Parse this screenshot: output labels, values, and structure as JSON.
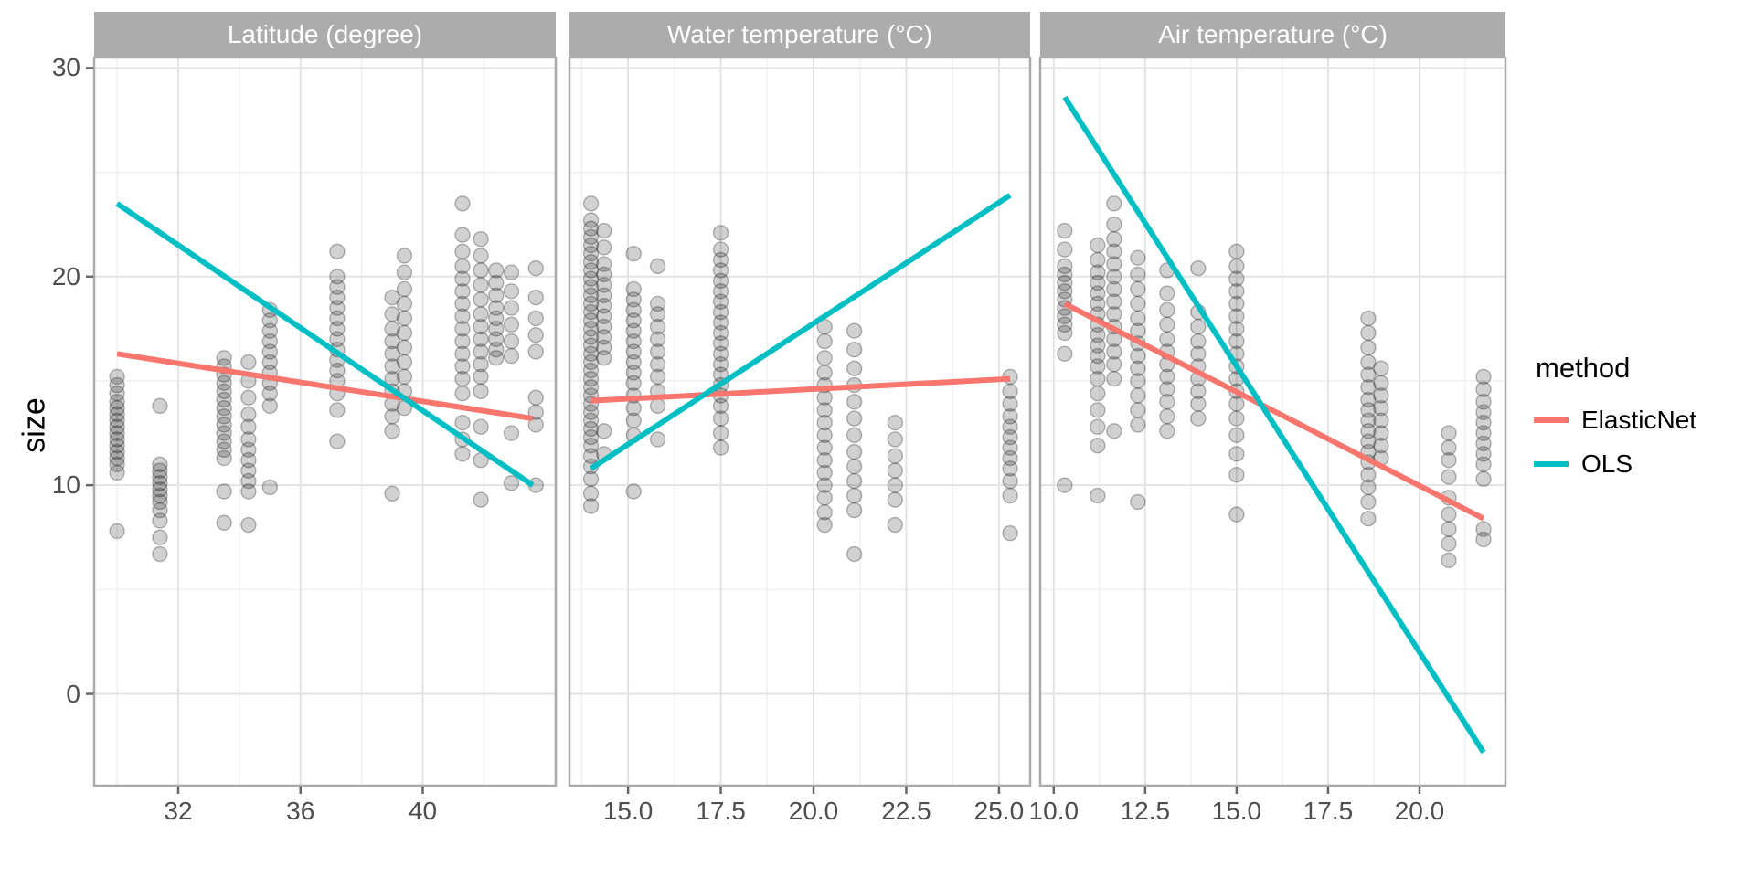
{
  "chart_data": {
    "type": "scatter",
    "ylabel": "size",
    "ylim": [
      -4.4,
      30.5
    ],
    "y_ticks": [
      {
        "value": 0,
        "label": "0"
      },
      {
        "value": 10,
        "label": "10"
      },
      {
        "value": 20,
        "label": "20"
      },
      {
        "value": 30,
        "label": "30"
      }
    ],
    "y_minor": [
      5,
      15,
      25
    ],
    "legend": {
      "title": "method",
      "items": [
        {
          "label": "ElasticNet",
          "color": "#F8766D"
        },
        {
          "label": "OLS",
          "color": "#00BFC4"
        }
      ]
    },
    "theme": {
      "strip_bg": "#ACACAC",
      "strip_text": "#FFFFFF",
      "panel_border": "#A9A9A9",
      "grid_major": "#E3E3E3",
      "grid_minor": "#F1F1F1",
      "tick_mark": "#666666",
      "tick_text": "#4D4D4D",
      "point_color": "#000000",
      "line_width": 6
    },
    "panels": [
      {
        "title": "Latitude (degree)",
        "xlim": [
          29.25,
          44.35
        ],
        "x_ticks": [
          {
            "value": 32,
            "label": "32"
          },
          {
            "value": 36,
            "label": "36"
          },
          {
            "value": 40,
            "label": "40"
          }
        ],
        "x_minor": [
          30,
          34,
          38,
          42
        ],
        "lines": {
          "ElasticNet": {
            "x": [
              30.0,
              43.6
            ],
            "y": [
              16.3,
              13.2
            ]
          },
          "OLS": {
            "x": [
              30.0,
              43.6
            ],
            "y": [
              23.5,
              10.0
            ]
          }
        },
        "clusters": [
          {
            "x": 30.0,
            "sizes": [
              15.2,
              14.8,
              14.4,
              14.0,
              13.7,
              13.4,
              13.1,
              12.8,
              12.5,
              12.2,
              11.9,
              11.6,
              11.3,
              11.0,
              10.6,
              7.8
            ]
          },
          {
            "x": 31.4,
            "sizes": [
              13.8,
              11.0,
              10.7,
              10.4,
              10.1,
              9.8,
              9.5,
              9.2,
              8.8,
              8.3,
              7.5,
              6.7
            ]
          },
          {
            "x": 33.5,
            "sizes": [
              16.1,
              15.7,
              15.3,
              14.9,
              14.5,
              14.1,
              13.7,
              13.3,
              12.9,
              12.5,
              12.1,
              11.7,
              11.3,
              9.7,
              8.2
            ]
          },
          {
            "x": 34.3,
            "sizes": [
              15.9,
              15.0,
              14.2,
              13.4,
              12.8,
              12.2,
              11.7,
              11.2,
              10.7,
              10.2,
              9.7,
              8.1
            ]
          },
          {
            "x": 35.0,
            "sizes": [
              18.4,
              17.9,
              17.4,
              16.9,
              16.4,
              15.9,
              15.4,
              14.9,
              14.4,
              13.8,
              9.9
            ]
          },
          {
            "x": 37.2,
            "sizes": [
              21.2,
              20.0,
              19.5,
              19.0,
              18.5,
              18.0,
              17.5,
              17.0,
              16.5,
              16.0,
              15.5,
              15.0,
              14.4,
              13.6,
              12.1
            ]
          },
          {
            "x": 39.0,
            "sizes": [
              19.0,
              18.2,
              17.5,
              16.9,
              16.3,
              15.7,
              15.1,
              14.5,
              13.9,
              13.3,
              12.6,
              9.6
            ]
          },
          {
            "x": 39.4,
            "sizes": [
              21.0,
              20.2,
              19.4,
              18.7,
              18.0,
              17.3,
              16.6,
              15.9,
              15.2,
              14.5,
              13.7
            ]
          },
          {
            "x": 41.3,
            "sizes": [
              23.5,
              22.0,
              21.2,
              20.5,
              19.9,
              19.3,
              18.7,
              18.1,
              17.5,
              16.9,
              16.3,
              15.7,
              15.1,
              14.4,
              13.0,
              12.2,
              11.5
            ]
          },
          {
            "x": 41.9,
            "sizes": [
              21.8,
              21.0,
              20.3,
              19.6,
              18.9,
              18.2,
              17.6,
              17.0,
              16.4,
              15.8,
              15.2,
              14.5,
              12.8,
              11.2,
              9.3
            ]
          },
          {
            "x": 42.4,
            "sizes": [
              20.3,
              19.7,
              19.1,
              18.5,
              18.0,
              17.5,
              17.0,
              16.5,
              16.1
            ]
          },
          {
            "x": 42.9,
            "sizes": [
              20.2,
              19.3,
              18.5,
              17.7,
              16.9,
              16.2,
              12.5,
              10.1
            ]
          },
          {
            "x": 43.7,
            "sizes": [
              20.4,
              19.0,
              18.0,
              17.2,
              16.4,
              14.2,
              13.5,
              12.9,
              10.0
            ]
          }
        ]
      },
      {
        "title": "Water temperature (°C)",
        "xlim": [
          13.42,
          25.84
        ],
        "x_ticks": [
          {
            "value": 15.0,
            "label": "15.0"
          },
          {
            "value": 17.5,
            "label": "17.5"
          },
          {
            "value": 20.0,
            "label": "20.0"
          },
          {
            "value": 22.5,
            "label": "22.5"
          },
          {
            "value": 25.0,
            "label": "25.0"
          }
        ],
        "x_minor": [
          13.75,
          16.25,
          18.75,
          21.25,
          23.75
        ],
        "lines": {
          "ElasticNet": {
            "x": [
              14.0,
              25.3
            ],
            "y": [
              14.05,
              15.1
            ]
          },
          "OLS": {
            "x": [
              14.0,
              25.3
            ],
            "y": [
              10.8,
              23.9
            ]
          }
        },
        "clusters": [
          {
            "x": 14.0,
            "sizes": [
              23.5,
              22.7,
              22.3,
              21.9,
              21.5,
              21.1,
              20.7,
              20.3,
              19.9,
              19.5,
              19.1,
              18.7,
              18.3,
              17.9,
              17.5,
              17.1,
              16.7,
              16.3,
              15.9,
              15.5,
              15.1,
              14.7,
              14.3,
              13.9,
              13.5,
              13.1,
              12.7,
              12.3,
              11.9,
              11.4,
              10.9,
              10.3,
              9.6,
              9.0
            ]
          },
          {
            "x": 14.35,
            "sizes": [
              22.2,
              21.4,
              20.6,
              20.1,
              19.6,
              19.1,
              18.6,
              18.1,
              17.6,
              17.1,
              16.6,
              16.1,
              12.6,
              11.5
            ]
          },
          {
            "x": 15.15,
            "sizes": [
              21.1,
              19.4,
              18.9,
              18.4,
              17.9,
              17.4,
              16.9,
              16.4,
              15.9,
              15.4,
              14.9,
              14.3,
              13.7,
              13.1,
              12.4,
              9.7
            ]
          },
          {
            "x": 15.8,
            "sizes": [
              20.5,
              18.7,
              18.2,
              17.6,
              17.0,
              16.4,
              15.8,
              15.2,
              14.5,
              13.8,
              12.2
            ]
          },
          {
            "x": 17.5,
            "sizes": [
              22.1,
              21.3,
              20.8,
              20.3,
              19.8,
              19.3,
              18.8,
              18.3,
              17.8,
              17.3,
              16.8,
              16.3,
              15.8,
              15.3,
              14.8,
              14.3,
              13.8,
              13.2,
              12.5,
              11.8
            ]
          },
          {
            "x": 20.3,
            "sizes": [
              17.6,
              16.9,
              16.1,
              15.4,
              14.8,
              14.2,
              13.6,
              13.0,
              12.4,
              11.8,
              11.2,
              10.6,
              10.0,
              9.4,
              8.7,
              8.1
            ]
          },
          {
            "x": 21.1,
            "sizes": [
              17.4,
              16.5,
              15.6,
              14.8,
              14.0,
              13.2,
              12.4,
              11.6,
              10.9,
              10.2,
              9.5,
              8.8,
              6.7
            ]
          },
          {
            "x": 22.2,
            "sizes": [
              13.0,
              12.2,
              11.4,
              10.7,
              10.0,
              9.3,
              8.1
            ]
          },
          {
            "x": 25.3,
            "sizes": [
              15.2,
              14.5,
              13.9,
              13.3,
              12.8,
              12.3,
              11.8,
              11.3,
              10.8,
              10.2,
              9.5,
              7.7
            ]
          }
        ]
      },
      {
        "title": "Air temperature (°C)",
        "xlim": [
          9.63,
          22.35
        ],
        "x_ticks": [
          {
            "value": 10.0,
            "label": "10.0"
          },
          {
            "value": 12.5,
            "label": "12.5"
          },
          {
            "value": 15.0,
            "label": "15.0"
          },
          {
            "value": 17.5,
            "label": "17.5"
          },
          {
            "value": 20.0,
            "label": "20.0"
          }
        ],
        "x_minor": [
          11.25,
          13.75,
          16.25,
          18.75,
          21.25
        ],
        "lines": {
          "ElasticNet": {
            "x": [
              10.3,
              21.75
            ],
            "y": [
              18.7,
              8.4
            ]
          },
          "OLS": {
            "x": [
              10.3,
              21.75
            ],
            "y": [
              28.6,
              -2.8
            ]
          }
        },
        "clusters": [
          {
            "x": 10.3,
            "sizes": [
              22.2,
              21.3,
              20.5,
              20.1,
              19.7,
              19.3,
              18.9,
              18.5,
              18.1,
              17.7,
              17.3,
              16.3,
              10.0
            ]
          },
          {
            "x": 11.2,
            "sizes": [
              21.5,
              20.8,
              20.2,
              19.7,
              19.2,
              18.7,
              18.2,
              17.7,
              17.2,
              16.7,
              16.2,
              15.7,
              15.1,
              14.4,
              13.6,
              12.8,
              11.9,
              9.5
            ]
          },
          {
            "x": 11.65,
            "sizes": [
              23.5,
              22.5,
              21.8,
              21.2,
              20.6,
              20.0,
              19.4,
              18.8,
              18.2,
              17.6,
              17.0,
              16.4,
              15.8,
              15.1,
              12.6
            ]
          },
          {
            "x": 12.3,
            "sizes": [
              20.9,
              20.1,
              19.4,
              18.7,
              18.0,
              17.4,
              16.8,
              16.2,
              15.6,
              15.0,
              14.3,
              13.6,
              12.9,
              9.2
            ]
          },
          {
            "x": 13.1,
            "sizes": [
              20.3,
              19.2,
              18.4,
              17.7,
              17.0,
              16.4,
              15.8,
              15.2,
              14.6,
              14.0,
              13.3,
              12.6
            ]
          },
          {
            "x": 13.95,
            "sizes": [
              20.4,
              18.3,
              17.6,
              16.9,
              16.3,
              15.7,
              15.1,
              14.5,
              13.9,
              13.2
            ]
          },
          {
            "x": 15.0,
            "sizes": [
              21.2,
              20.5,
              19.9,
              19.3,
              18.7,
              18.1,
              17.5,
              16.9,
              16.3,
              15.7,
              15.1,
              14.5,
              13.9,
              13.2,
              12.4,
              11.5,
              10.5,
              8.6
            ]
          },
          {
            "x": 18.6,
            "sizes": [
              18.0,
              17.3,
              16.6,
              15.9,
              15.3,
              14.7,
              14.1,
              13.6,
              13.1,
              12.6,
              12.1,
              11.6,
              11.1,
              10.5,
              9.9,
              9.2,
              8.4
            ]
          },
          {
            "x": 18.95,
            "sizes": [
              15.6,
              14.9,
              14.3,
              13.7,
              13.1,
              12.5,
              11.9,
              11.3
            ]
          },
          {
            "x": 20.8,
            "sizes": [
              12.5,
              11.8,
              11.2,
              10.4,
              9.4,
              8.6,
              7.9,
              7.2,
              6.4
            ]
          },
          {
            "x": 21.75,
            "sizes": [
              15.2,
              14.6,
              14.0,
              13.5,
              13.0,
              12.5,
              12.0,
              11.5,
              11.0,
              10.3,
              7.9,
              7.4
            ]
          }
        ]
      }
    ]
  }
}
